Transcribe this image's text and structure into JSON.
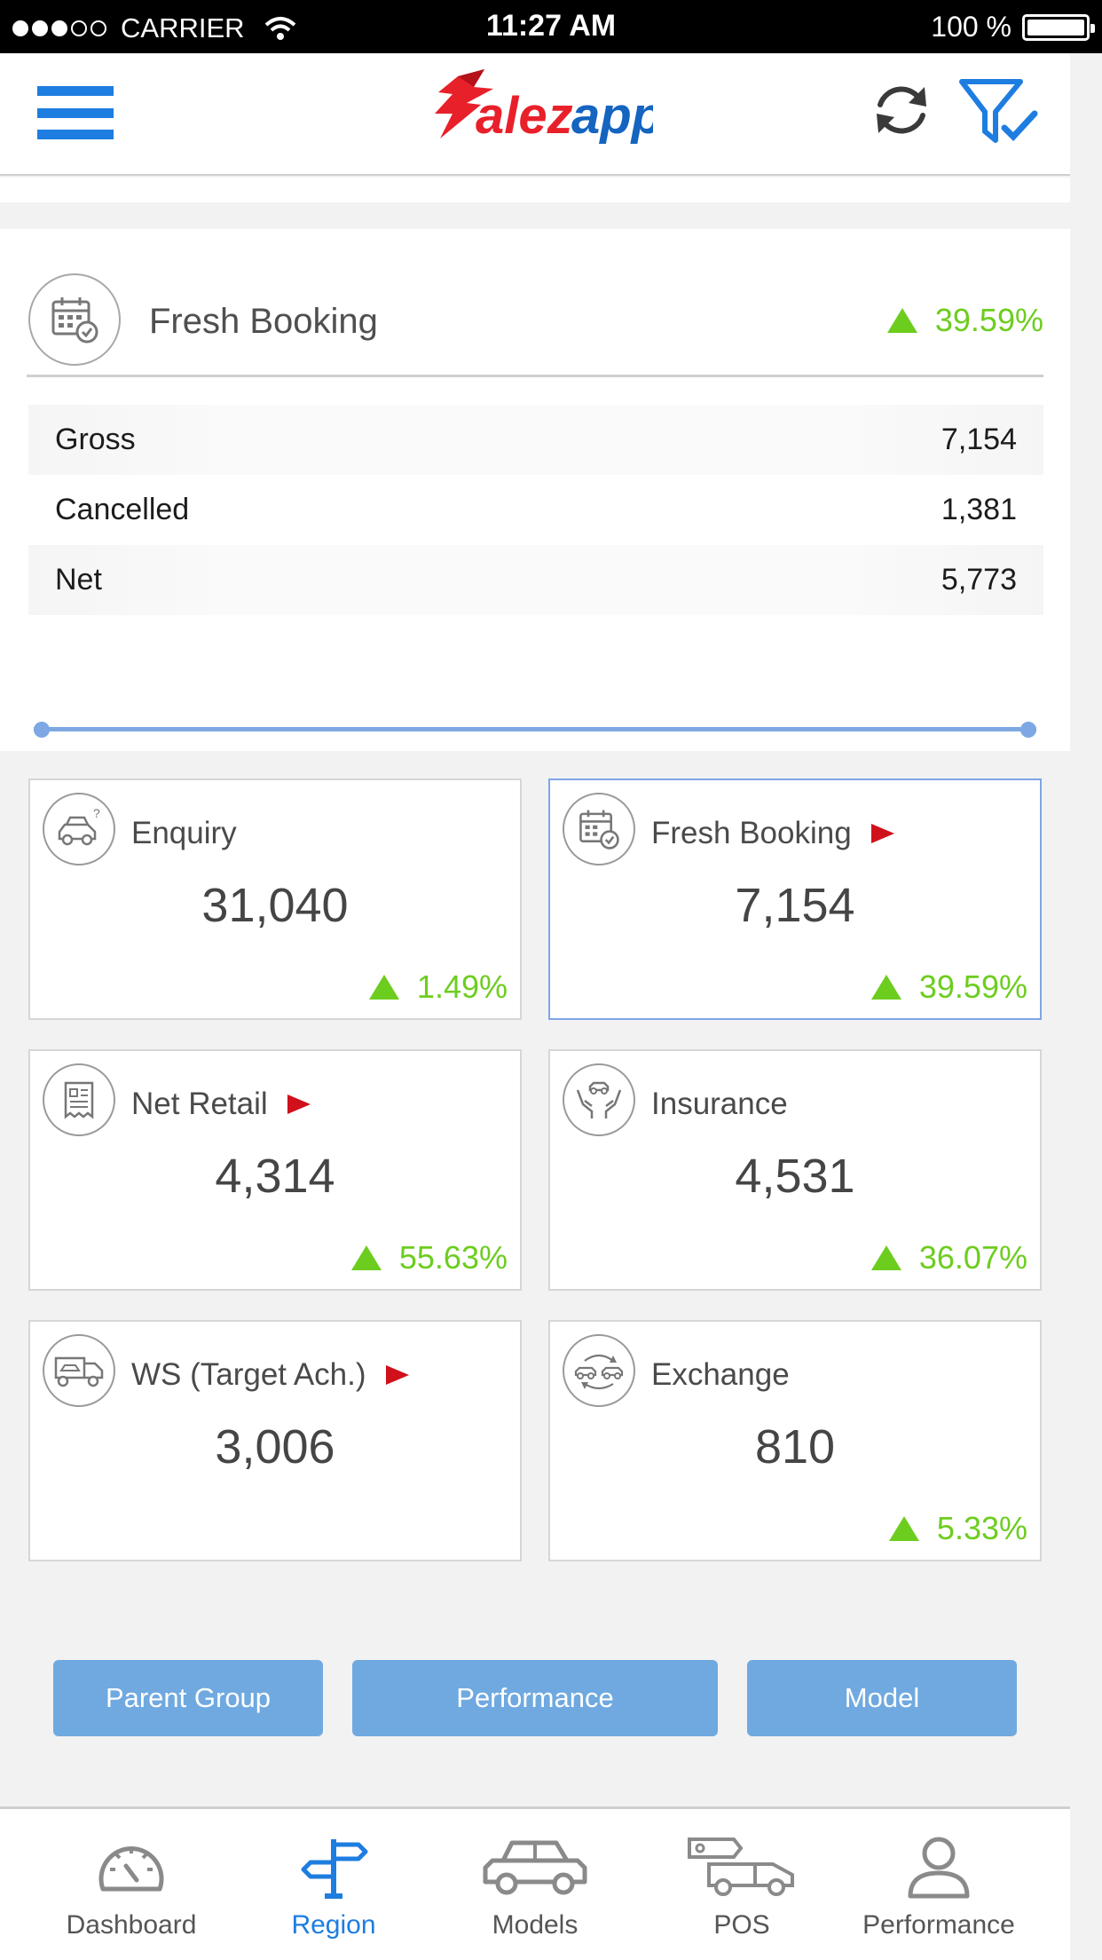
{
  "status_bar": {
    "carrier": "CARRIER",
    "time": "11:27 AM",
    "battery": "100 %"
  },
  "header": {
    "logo_text": "Salezapp",
    "logo_color_primary": "#e8202a",
    "logo_color_secondary": "#1464c0"
  },
  "main_card": {
    "title": "Fresh Booking",
    "change": "39.59%",
    "rows": [
      {
        "label": "Gross",
        "value": "7,154"
      },
      {
        "label": "Cancelled",
        "value": "1,381"
      },
      {
        "label": "Net",
        "value": "5,773"
      }
    ]
  },
  "tiles": [
    {
      "label": "Enquiry",
      "value": "31,040",
      "change": "1.49%",
      "icon": "car-question-icon"
    },
    {
      "label": "Fresh Booking",
      "value": "7,154",
      "change": "39.59%",
      "icon": "calendar-check-icon"
    },
    {
      "label": "Net Retail",
      "value": "4,314",
      "change": "55.63%",
      "icon": "invoice-icon"
    },
    {
      "label": "Insurance",
      "value": "4,531",
      "change": "36.07%",
      "icon": "hands-car-icon"
    },
    {
      "label": "WS (Target Ach.)",
      "value": "3,006",
      "change": "",
      "icon": "truck-car-icon"
    },
    {
      "label": "Exchange",
      "value": "810",
      "change": "5.33%",
      "icon": "car-exchange-icon"
    }
  ],
  "buttons": {
    "parent_group": "Parent Group",
    "performance": "Performance",
    "model": "Model"
  },
  "bottom_nav": [
    {
      "label": "Dashboard",
      "icon": "speedometer-icon"
    },
    {
      "label": "Region",
      "icon": "signpost-icon"
    },
    {
      "label": "Models",
      "icon": "car-icon"
    },
    {
      "label": "POS",
      "icon": "delivery-truck-icon"
    },
    {
      "label": "Performance",
      "icon": "person-icon"
    }
  ],
  "colors": {
    "accent": "#1e7de0",
    "positive": "#6dcd1f",
    "arrow": "#d0101a",
    "button": "#70a9e0"
  }
}
